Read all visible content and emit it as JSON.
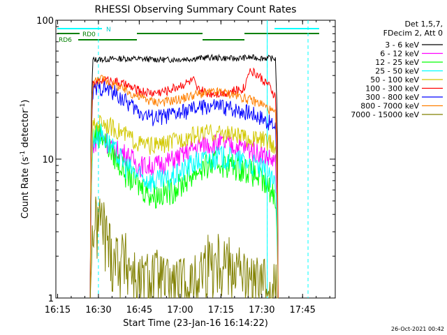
{
  "chart_data": {
    "type": "line",
    "title": "RHESSI Observing Summary Count Rates",
    "xlabel": "Start Time (23-Jan-16 16:14:22)",
    "ylabel_main": "Count Rate (s",
    "ylabel_exp1": "-1",
    "ylabel_mid": " detector",
    "ylabel_exp2": "-1",
    "ylabel_end": ")",
    "y_scale": "log",
    "ylim": [
      1,
      100
    ],
    "xlim": [
      "16:14:22",
      "17:57:00"
    ],
    "x_ticks": [
      "16:15",
      "16:30",
      "16:45",
      "17:00",
      "17:15",
      "17:30",
      "17:45"
    ],
    "y_ticks": [
      "1",
      "10",
      "100"
    ],
    "info_line1": "Det 1,5,7,",
    "info_line2": "FDecim 2, Att 0",
    "timestamp": "26-Oct-2021 00:42",
    "flag_labels": {
      "n": "N",
      "rd0": "RD0",
      "rd6": "RD6"
    },
    "colors": {
      "black": "#000000",
      "magenta": "#ff00ff",
      "green": "#00ff00",
      "cyan": "#00ffff",
      "yellow": "#d2c800",
      "red": "#ff0000",
      "blue": "#0000ff",
      "orange": "#ff7f00",
      "olive": "#808000",
      "flag_green": "#008000"
    },
    "series": [
      {
        "name": "3 - 6 keV",
        "color": "#000000",
        "points": [
          [
            "16:27",
            1.0
          ],
          [
            "16:28",
            52
          ],
          [
            "16:40",
            53
          ],
          [
            "16:55",
            52
          ],
          [
            "17:05",
            53
          ],
          [
            "17:10",
            54
          ],
          [
            "17:20",
            53
          ],
          [
            "17:25",
            54
          ],
          [
            "17:35",
            53
          ],
          [
            "17:36",
            1.0
          ]
        ]
      },
      {
        "name": "6 - 12 keV",
        "color": "#ff00ff",
        "points": [
          [
            "16:27",
            1.0
          ],
          [
            "16:28",
            13
          ],
          [
            "16:31",
            15
          ],
          [
            "16:35",
            12
          ],
          [
            "16:40",
            11
          ],
          [
            "16:45",
            9
          ],
          [
            "16:50",
            9
          ],
          [
            "16:55",
            9.5
          ],
          [
            "17:00",
            10.5
          ],
          [
            "17:05",
            12
          ],
          [
            "17:10",
            13
          ],
          [
            "17:15",
            13
          ],
          [
            "17:20",
            12.5
          ],
          [
            "17:25",
            12
          ],
          [
            "17:30",
            11
          ],
          [
            "17:35",
            9.5
          ],
          [
            "17:36",
            1.0
          ]
        ]
      },
      {
        "name": "12 - 25 keV",
        "color": "#00ff00",
        "points": [
          [
            "16:27",
            1.0
          ],
          [
            "16:28",
            15
          ],
          [
            "16:31",
            15.5
          ],
          [
            "16:35",
            11
          ],
          [
            "16:40",
            8
          ],
          [
            "16:45",
            6.5
          ],
          [
            "16:50",
            5.5
          ],
          [
            "16:55",
            5.8
          ],
          [
            "17:00",
            6.5
          ],
          [
            "17:05",
            8
          ],
          [
            "17:10",
            9
          ],
          [
            "17:15",
            9.5
          ],
          [
            "17:20",
            9
          ],
          [
            "17:25",
            8.5
          ],
          [
            "17:30",
            7
          ],
          [
            "17:35",
            5.5
          ],
          [
            "17:36",
            1.0
          ]
        ]
      },
      {
        "name": "25 - 50 keV",
        "color": "#00ffff",
        "points": [
          [
            "16:27",
            1.0
          ],
          [
            "16:28",
            14
          ],
          [
            "16:31",
            15.5
          ],
          [
            "16:35",
            12
          ],
          [
            "16:40",
            9
          ],
          [
            "16:45",
            7.5
          ],
          [
            "16:50",
            7
          ],
          [
            "16:55",
            7
          ],
          [
            "17:00",
            8
          ],
          [
            "17:05",
            9.5
          ],
          [
            "17:10",
            10
          ],
          [
            "17:15",
            10.5
          ],
          [
            "17:20",
            10
          ],
          [
            "17:25",
            9.5
          ],
          [
            "17:30",
            8.5
          ],
          [
            "17:35",
            6.5
          ],
          [
            "17:36",
            1.0
          ]
        ]
      },
      {
        "name": "50 - 100 keV",
        "color": "#d2c800",
        "points": [
          [
            "16:27",
            1.0
          ],
          [
            "16:28",
            17
          ],
          [
            "16:31",
            19
          ],
          [
            "16:35",
            17
          ],
          [
            "16:40",
            15
          ],
          [
            "16:45",
            13
          ],
          [
            "16:50",
            12.5
          ],
          [
            "16:55",
            13
          ],
          [
            "17:00",
            14
          ],
          [
            "17:05",
            15
          ],
          [
            "17:10",
            15.5
          ],
          [
            "17:15",
            15.5
          ],
          [
            "17:20",
            15
          ],
          [
            "17:25",
            14
          ],
          [
            "17:30",
            14
          ],
          [
            "17:35",
            12.5
          ],
          [
            "17:36",
            1.0
          ]
        ]
      },
      {
        "name": "100 - 300 keV",
        "color": "#ff0000",
        "points": [
          [
            "16:27",
            1.0
          ],
          [
            "16:28",
            34
          ],
          [
            "16:31",
            37
          ],
          [
            "16:35",
            37
          ],
          [
            "16:40",
            34
          ],
          [
            "16:45",
            31
          ],
          [
            "16:50",
            30
          ],
          [
            "16:55",
            31
          ],
          [
            "17:00",
            34
          ],
          [
            "17:05",
            37
          ],
          [
            "17:06",
            32
          ],
          [
            "17:10",
            30
          ],
          [
            "17:15",
            30
          ],
          [
            "17:20",
            31
          ],
          [
            "17:24",
            33
          ],
          [
            "17:25",
            44
          ],
          [
            "17:28",
            41
          ],
          [
            "17:32",
            35
          ],
          [
            "17:35",
            28
          ],
          [
            "17:36",
            1.0
          ]
        ]
      },
      {
        "name": "300 - 800 keV",
        "color": "#0000ff",
        "points": [
          [
            "16:27",
            1.0
          ],
          [
            "16:28",
            31
          ],
          [
            "16:31",
            33
          ],
          [
            "16:35",
            31
          ],
          [
            "16:40",
            26
          ],
          [
            "16:45",
            22
          ],
          [
            "16:50",
            20
          ],
          [
            "16:55",
            20.5
          ],
          [
            "17:00",
            21.5
          ],
          [
            "17:05",
            23
          ],
          [
            "17:10",
            24
          ],
          [
            "17:15",
            24
          ],
          [
            "17:20",
            23
          ],
          [
            "17:25",
            22
          ],
          [
            "17:30",
            20
          ],
          [
            "17:35",
            17
          ],
          [
            "17:36",
            1.0
          ]
        ]
      },
      {
        "name": "800 - 7000 keV",
        "color": "#ff7f00",
        "points": [
          [
            "16:27",
            1.0
          ],
          [
            "16:28",
            36
          ],
          [
            "16:31",
            38
          ],
          [
            "16:35",
            35
          ],
          [
            "16:40",
            31
          ],
          [
            "16:45",
            28
          ],
          [
            "16:50",
            26
          ],
          [
            "16:55",
            26
          ],
          [
            "17:00",
            27
          ],
          [
            "17:05",
            29
          ],
          [
            "17:10",
            30
          ],
          [
            "17:15",
            30.5
          ],
          [
            "17:20",
            29
          ],
          [
            "17:25",
            27
          ],
          [
            "17:30",
            25
          ],
          [
            "17:35",
            21
          ],
          [
            "17:36",
            1.0
          ]
        ]
      },
      {
        "name": "7000 - 15000 keV",
        "color": "#808000",
        "points": [
          [
            "16:27",
            1.0
          ],
          [
            "16:28",
            2.6
          ],
          [
            "16:31",
            3.0
          ],
          [
            "16:33",
            2.2
          ],
          [
            "16:35",
            1.7
          ],
          [
            "16:40",
            1.5
          ],
          [
            "16:45",
            1.0
          ],
          [
            "16:50",
            1.2
          ],
          [
            "16:55",
            1.0
          ],
          [
            "17:00",
            1.0
          ],
          [
            "17:05",
            1.0
          ],
          [
            "17:10",
            1.5
          ],
          [
            "17:15",
            1.6
          ],
          [
            "17:20",
            1.4
          ],
          [
            "17:25",
            1.0
          ],
          [
            "17:30",
            1.0
          ],
          [
            "17:35",
            1.0
          ],
          [
            "17:36",
            1.0
          ]
        ]
      }
    ],
    "vlines": [
      {
        "time": "16:30",
        "color": "#00ffff"
      },
      {
        "time": "17:32",
        "color": "#00ffff"
      },
      {
        "time": "17:47",
        "color": "#00ffff"
      }
    ]
  }
}
